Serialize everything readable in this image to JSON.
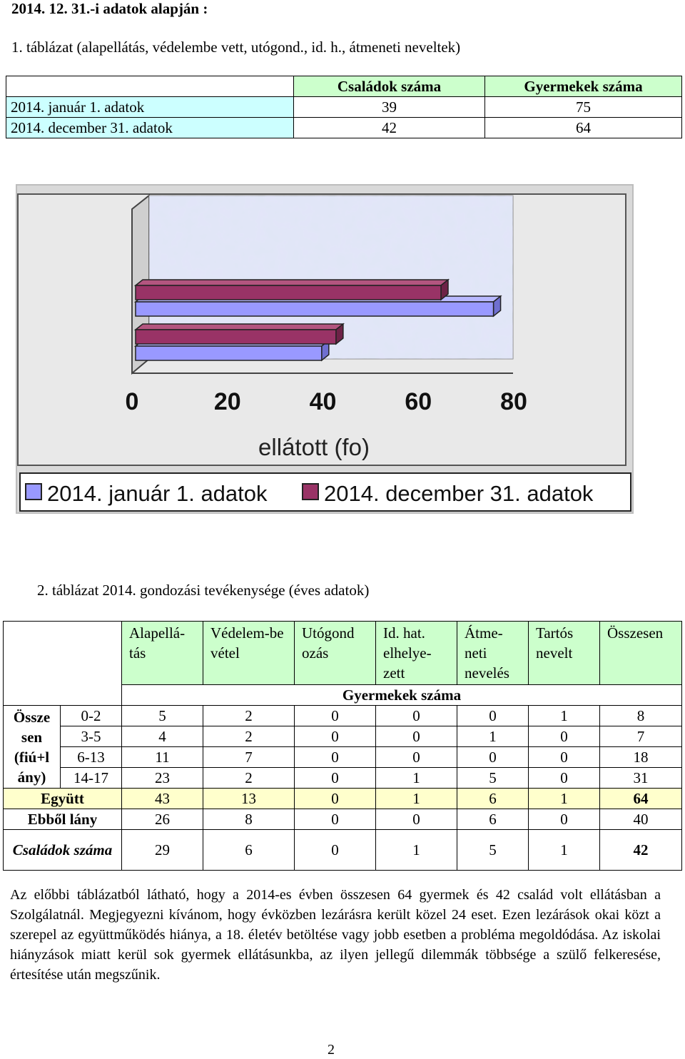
{
  "heading": "2014. 12. 31.-i adatok alapján :",
  "table1": {
    "caption": "1.  táblázat (alapellátás, védelembe vett, utógond., id. h., átmeneti neveltek)",
    "headers": [
      "Családok száma",
      "Gyermekek száma"
    ],
    "rows": [
      {
        "label": "2014. január 1. adatok",
        "families": "39",
        "children": "75"
      },
      {
        "label": "2014. december 31. adatok",
        "families": "42",
        "children": "64"
      }
    ]
  },
  "chart_data": {
    "type": "bar",
    "orientation": "horizontal",
    "categories": [
      "Családok száma",
      "Gyermekek száma"
    ],
    "series": [
      {
        "name": "2014. január 1. adatok",
        "values": [
          39,
          75
        ]
      },
      {
        "name": "2014. december 31. adatok",
        "values": [
          42,
          64
        ]
      }
    ],
    "xlabel": "ellátott (fo)",
    "xlim": [
      0,
      80
    ],
    "xticks": [
      "0",
      "20",
      "40",
      "60",
      "80"
    ],
    "legend": "bottom",
    "grid": false,
    "colors": {
      "jan": "#9999ff",
      "dec": "#993366"
    }
  },
  "table2": {
    "caption": "2.  táblázat 2014. gondozási tevékenysége (éves adatok)",
    "col_headers": [
      "Alapellá-tás",
      "Védelem-be vétel",
      "Utógond ozás",
      "Id. hat. elhelye-zett",
      "Átme-neti nevelés",
      "Tartós nevelt",
      "Összesen"
    ],
    "group_header": "Gyermekek száma",
    "row_group_label": "Össze sen (fiú+l ány)",
    "age_rows": [
      {
        "age": "0-2",
        "values": [
          "5",
          "2",
          "0",
          "0",
          "0",
          "1",
          "8"
        ]
      },
      {
        "age": "3-5",
        "values": [
          "4",
          "2",
          "0",
          "0",
          "1",
          "0",
          "7"
        ]
      },
      {
        "age": "6-13",
        "values": [
          "11",
          "7",
          "0",
          "0",
          "0",
          "0",
          "18"
        ]
      },
      {
        "age": "14-17",
        "values": [
          "23",
          "2",
          "0",
          "1",
          "5",
          "0",
          "31"
        ]
      }
    ],
    "total": {
      "label": "Együtt",
      "values": [
        "43",
        "13",
        "0",
        "1",
        "6",
        "1",
        "64"
      ]
    },
    "girls": {
      "label": "Ebből lány",
      "values": [
        "26",
        "8",
        "0",
        "0",
        "6",
        "0",
        "40"
      ]
    },
    "families": {
      "label": "Családok száma",
      "values": [
        "29",
        "6",
        "0",
        "1",
        "5",
        "1",
        "42"
      ]
    }
  },
  "paragraph": "Az előbbi táblázatból látható, hogy a 2014-es évben összesen 64 gyermek és 42 család volt ellátásban a Szolgálatnál. Megjegyezni kívánom, hogy évközben lezárásra került közel 24 eset. Ezen lezárások okai közt a szerepel az együttműködés hiánya, a 18. életév betöltése vagy jobb esetben a probléma megoldódása. Az iskolai hiányzások miatt kerül sok gyermek ellátásunkba, az ilyen jellegű dilemmák többsége a szülő felkeresése, értesítése után megszűnik.",
  "page_number": "2"
}
